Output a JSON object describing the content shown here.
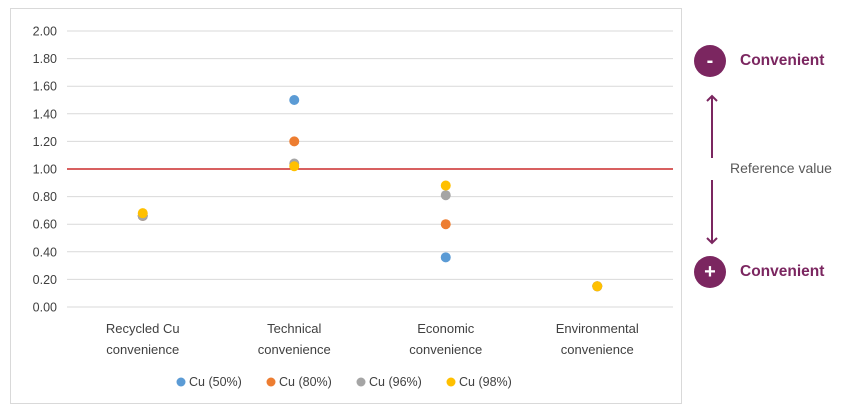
{
  "chart_data": {
    "type": "scatter",
    "categories": [
      [
        "Recycled Cu",
        "convenience"
      ],
      [
        "Technical",
        "convenience"
      ],
      [
        "Economic",
        "convenience"
      ],
      [
        "Environmental",
        "convenience"
      ]
    ],
    "yticks": [
      "0.00",
      "0.20",
      "0.40",
      "0.60",
      "0.80",
      "1.00",
      "1.20",
      "1.40",
      "1.60",
      "1.80",
      "2.00"
    ],
    "ylim": [
      0,
      2
    ],
    "reference_line": {
      "value": 1.0,
      "color": "#c00000"
    },
    "grid": true,
    "legend_position": "bottom",
    "series": [
      {
        "name": "Cu (50%)",
        "color": "#5b9bd5",
        "values": [
          0.66,
          1.5,
          0.36,
          0.15
        ]
      },
      {
        "name": "Cu (80%)",
        "color": "#ed7d31",
        "values": [
          0.66,
          1.2,
          0.6,
          0.15
        ]
      },
      {
        "name": "Cu (96%)",
        "color": "#a5a5a5",
        "values": [
          0.66,
          1.04,
          0.81,
          0.15
        ]
      },
      {
        "name": "Cu (98%)",
        "color": "#ffc000",
        "values": [
          0.68,
          1.02,
          0.88,
          0.15
        ]
      }
    ]
  },
  "side_panel": {
    "top": {
      "symbol": "-",
      "label": "Convenient"
    },
    "bottom": {
      "symbol": "+",
      "label": "Convenient"
    },
    "reference_label": "Reference value",
    "accent_color": "#7b2660"
  }
}
